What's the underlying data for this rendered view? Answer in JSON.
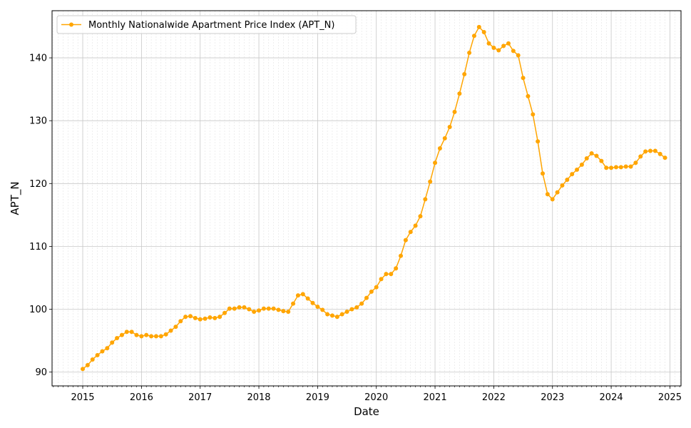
{
  "chart_data": {
    "type": "line",
    "xlabel": "Date",
    "ylabel": "APT_N",
    "x_ticks": [
      "2015",
      "2016",
      "2017",
      "2018",
      "2019",
      "2020",
      "2021",
      "2022",
      "2023",
      "2024",
      "2025"
    ],
    "y_ticks": [
      90,
      100,
      110,
      120,
      130,
      140
    ],
    "xlim": [
      "2014-07",
      "2025-03"
    ],
    "ylim": [
      87.8,
      147.5
    ],
    "grid": true,
    "legend_position": "top-left",
    "colors": {
      "series": "#FFA500",
      "grid": "#c8c8c8",
      "axis": "#000000"
    },
    "series": [
      {
        "name": "Monthly Nationalwide Apartment Price Index (APT_N)",
        "marker": "circle",
        "x": [
          "2015-01",
          "2015-02",
          "2015-03",
          "2015-04",
          "2015-05",
          "2015-06",
          "2015-07",
          "2015-08",
          "2015-09",
          "2015-10",
          "2015-11",
          "2015-12",
          "2016-01",
          "2016-02",
          "2016-03",
          "2016-04",
          "2016-05",
          "2016-06",
          "2016-07",
          "2016-08",
          "2016-09",
          "2016-10",
          "2016-11",
          "2016-12",
          "2017-01",
          "2017-02",
          "2017-03",
          "2017-04",
          "2017-05",
          "2017-06",
          "2017-07",
          "2017-08",
          "2017-09",
          "2017-10",
          "2017-11",
          "2017-12",
          "2018-01",
          "2018-02",
          "2018-03",
          "2018-04",
          "2018-05",
          "2018-06",
          "2018-07",
          "2018-08",
          "2018-09",
          "2018-10",
          "2018-11",
          "2018-12",
          "2019-01",
          "2019-02",
          "2019-03",
          "2019-04",
          "2019-05",
          "2019-06",
          "2019-07",
          "2019-08",
          "2019-09",
          "2019-10",
          "2019-11",
          "2019-12",
          "2020-01",
          "2020-02",
          "2020-03",
          "2020-04",
          "2020-05",
          "2020-06",
          "2020-07",
          "2020-08",
          "2020-09",
          "2020-10",
          "2020-11",
          "2020-12",
          "2021-01",
          "2021-02",
          "2021-03",
          "2021-04",
          "2021-05",
          "2021-06",
          "2021-07",
          "2021-08",
          "2021-09",
          "2021-10",
          "2021-11",
          "2021-12",
          "2022-01",
          "2022-02",
          "2022-03",
          "2022-04",
          "2022-05",
          "2022-06",
          "2022-07",
          "2022-08",
          "2022-09",
          "2022-10",
          "2022-11",
          "2022-12",
          "2023-01",
          "2023-02",
          "2023-03",
          "2023-04",
          "2023-05",
          "2023-06",
          "2023-07",
          "2023-08",
          "2023-09",
          "2023-10",
          "2023-11",
          "2023-12",
          "2024-01",
          "2024-02",
          "2024-03",
          "2024-04",
          "2024-05",
          "2024-06",
          "2024-07",
          "2024-08",
          "2024-09",
          "2024-10",
          "2024-11",
          "2024-12"
        ],
        "values": [
          90.5,
          91.1,
          92.0,
          92.7,
          93.3,
          93.8,
          94.7,
          95.4,
          95.9,
          96.4,
          96.4,
          95.9,
          95.7,
          95.9,
          95.7,
          95.7,
          95.7,
          96.0,
          96.6,
          97.2,
          98.1,
          98.8,
          98.9,
          98.6,
          98.4,
          98.5,
          98.7,
          98.6,
          98.8,
          99.4,
          100.1,
          100.1,
          100.3,
          100.3,
          100.0,
          99.6,
          99.8,
          100.1,
          100.1,
          100.1,
          99.9,
          99.7,
          99.6,
          100.9,
          102.2,
          102.4,
          101.7,
          101.0,
          100.4,
          99.9,
          99.2,
          99.0,
          98.8,
          99.2,
          99.6,
          100.0,
          100.3,
          100.9,
          101.8,
          102.8,
          103.5,
          104.8,
          105.6,
          105.6,
          106.5,
          108.5,
          111.0,
          112.3,
          113.3,
          114.8,
          117.5,
          120.3,
          123.3,
          125.6,
          127.2,
          129.0,
          131.4,
          134.3,
          137.4,
          140.8,
          143.5,
          144.9,
          144.1,
          142.3,
          141.6,
          141.2,
          141.9,
          142.3,
          141.1,
          140.4,
          136.8,
          133.9,
          131.0,
          126.7,
          121.6,
          118.3,
          117.5,
          118.6,
          119.7,
          120.6,
          121.5,
          122.2,
          123.0,
          124.0,
          124.8,
          124.4,
          123.6,
          122.5,
          122.5,
          122.6,
          122.6,
          122.7,
          122.7,
          123.3,
          124.3,
          125.1,
          125.2,
          125.2,
          124.7,
          124.1
        ]
      }
    ]
  }
}
